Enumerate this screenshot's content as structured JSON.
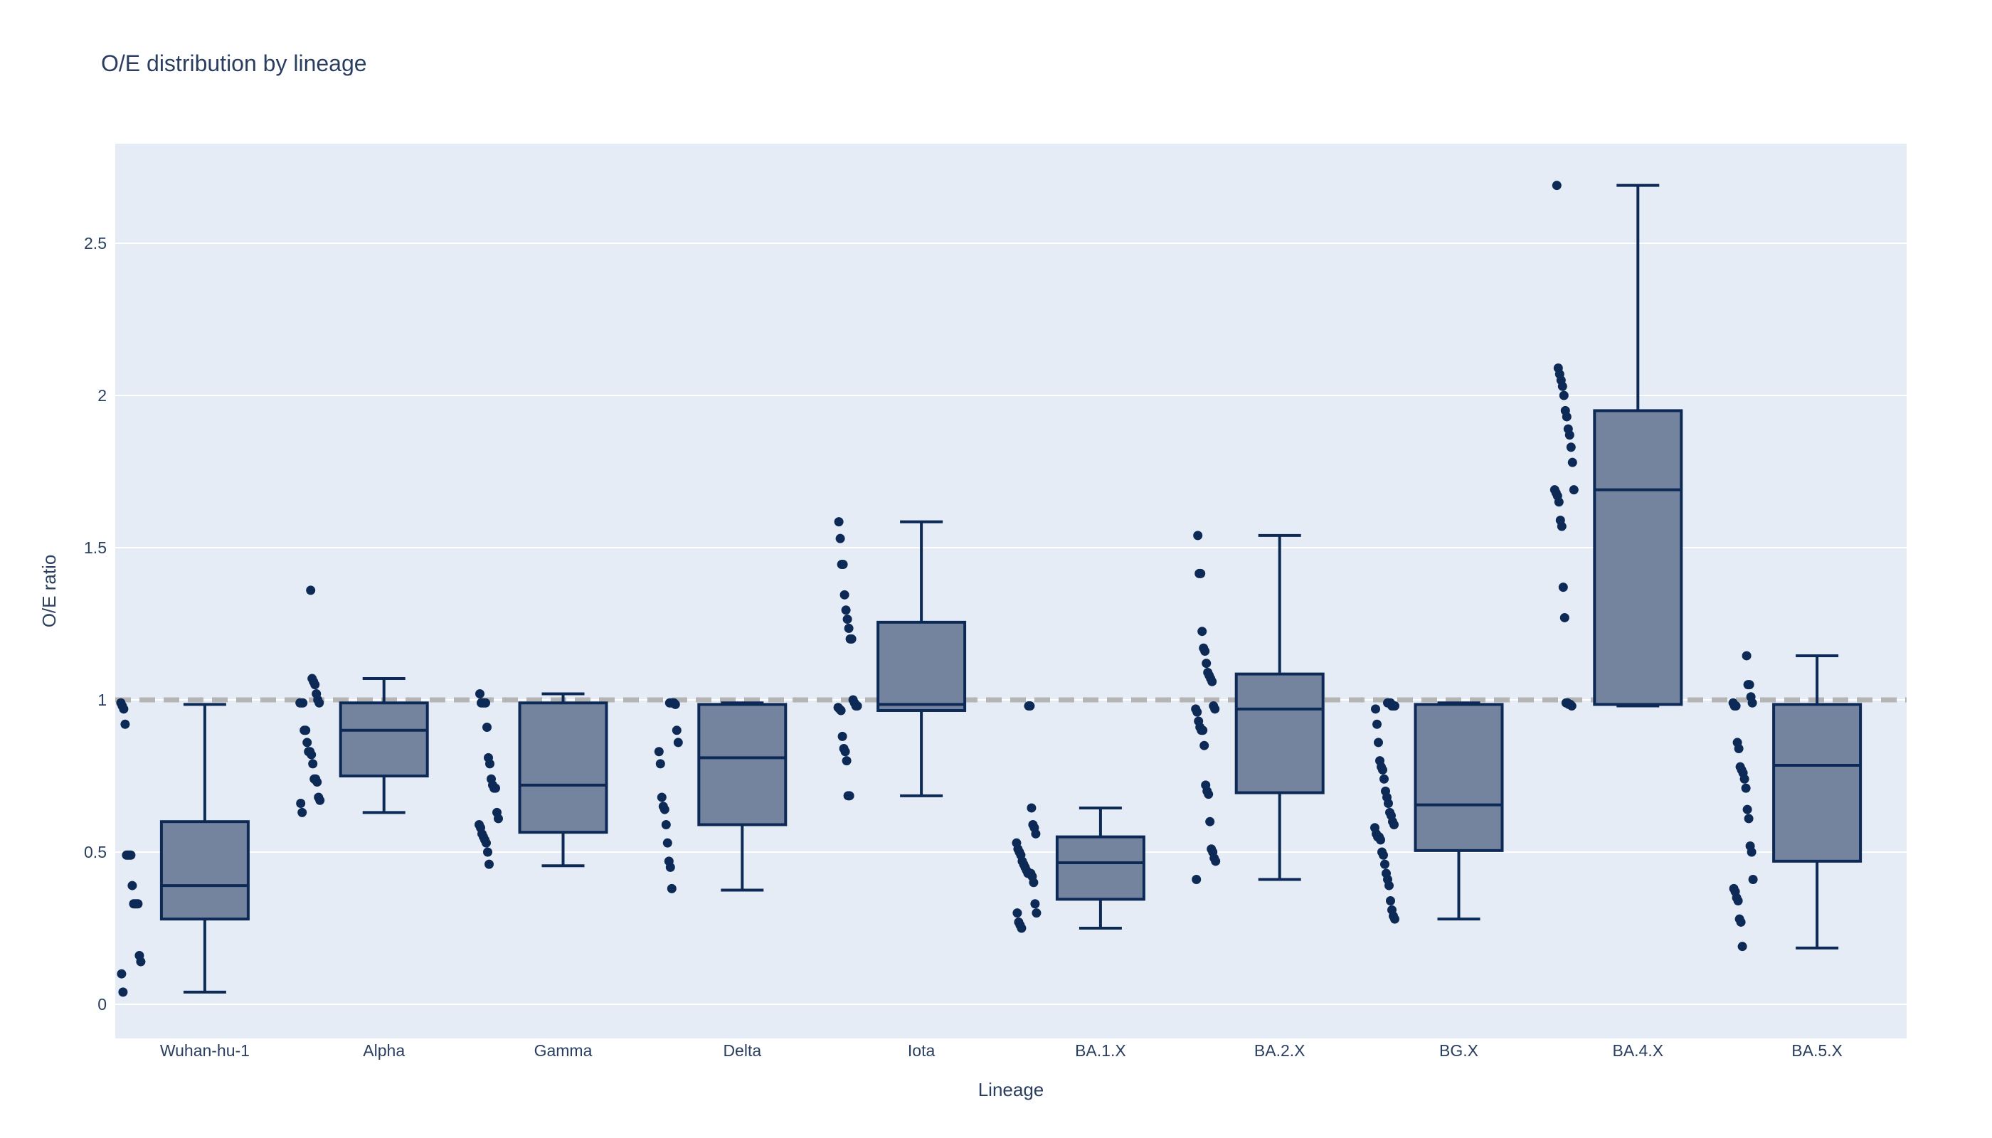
{
  "colors": {
    "plot_bg": "#e5ecf6",
    "grid": "#ffffff",
    "box_fill": "#74849f",
    "box_line": "#0d2a57",
    "point": "#0d2a57",
    "reference_line": "#b4b4b4",
    "text": "#2a3f5f"
  },
  "chart_data": {
    "type": "box",
    "title": "O/E distribution by lineage",
    "xlabel": "Lineage",
    "ylabel": "O/E ratio",
    "ylim": [
      -0.11,
      2.83
    ],
    "yticks": [
      0,
      0.5,
      1,
      1.5,
      2,
      2.5
    ],
    "ytick_labels": [
      "0",
      "0.5",
      "1",
      "1.5",
      "2",
      "2.5"
    ],
    "reference_line": {
      "y": 1.0,
      "style": "dashed"
    },
    "grid": true,
    "boxpoints": "all",
    "categories": [
      "Wuhan-hu-1",
      "Alpha",
      "Gamma",
      "Delta",
      "Iota",
      "BA.1.X",
      "BA.2.X",
      "BG.X",
      "BA.4.X",
      "BA.5.X"
    ],
    "boxes": [
      {
        "category": "Wuhan-hu-1",
        "min": 0.04,
        "q1": 0.28,
        "median": 0.39,
        "q3": 0.6,
        "max": 0.985,
        "points": [
          0.99,
          0.98,
          0.97,
          0.92,
          0.49,
          0.49,
          0.49,
          0.49,
          0.39,
          0.33,
          0.33,
          0.33,
          0.33,
          0.16,
          0.14,
          0.1,
          0.04
        ]
      },
      {
        "category": "Alpha",
        "min": 0.63,
        "q1": 0.75,
        "median": 0.9,
        "q3": 0.99,
        "max": 1.07,
        "points": [
          1.36,
          1.07,
          1.06,
          1.05,
          1.02,
          1.0,
          0.99,
          0.99,
          0.99,
          0.99,
          0.9,
          0.9,
          0.86,
          0.83,
          0.83,
          0.82,
          0.79,
          0.74,
          0.74,
          0.73,
          0.68,
          0.67,
          0.66,
          0.63
        ]
      },
      {
        "category": "Gamma",
        "min": 0.455,
        "q1": 0.565,
        "median": 0.72,
        "q3": 0.99,
        "max": 1.02,
        "points": [
          1.02,
          0.99,
          0.99,
          0.99,
          0.99,
          0.91,
          0.81,
          0.79,
          0.74,
          0.72,
          0.71,
          0.71,
          0.63,
          0.61,
          0.59,
          0.58,
          0.56,
          0.55,
          0.54,
          0.53,
          0.5,
          0.46
        ]
      },
      {
        "category": "Delta",
        "min": 0.375,
        "q1": 0.59,
        "median": 0.81,
        "q3": 0.985,
        "max": 0.99,
        "points": [
          0.99,
          0.99,
          0.99,
          0.99,
          0.985,
          0.9,
          0.86,
          0.83,
          0.79,
          0.68,
          0.65,
          0.64,
          0.59,
          0.53,
          0.47,
          0.45,
          0.38
        ]
      },
      {
        "category": "Iota",
        "min": 0.685,
        "q1": 0.965,
        "median": 0.985,
        "q3": 1.255,
        "max": 1.585,
        "points": [
          1.585,
          1.53,
          1.445,
          1.445,
          1.345,
          1.295,
          1.265,
          1.235,
          1.2,
          1.2,
          1.0,
          0.99,
          0.98,
          0.98,
          0.975,
          0.97,
          0.965,
          0.88,
          0.84,
          0.83,
          0.8,
          0.685,
          0.685
        ]
      },
      {
        "category": "BA.1.X",
        "min": 0.25,
        "q1": 0.345,
        "median": 0.465,
        "q3": 0.55,
        "max": 0.645,
        "points": [
          0.98,
          0.98,
          0.645,
          0.59,
          0.58,
          0.56,
          0.53,
          0.51,
          0.5,
          0.49,
          0.47,
          0.46,
          0.45,
          0.44,
          0.43,
          0.43,
          0.43,
          0.42,
          0.4,
          0.33,
          0.3,
          0.3,
          0.27,
          0.26,
          0.25
        ]
      },
      {
        "category": "BA.2.X",
        "min": 0.41,
        "q1": 0.695,
        "median": 0.97,
        "q3": 1.085,
        "max": 1.54,
        "points": [
          1.54,
          1.415,
          1.415,
          1.225,
          1.17,
          1.16,
          1.12,
          1.09,
          1.08,
          1.07,
          1.06,
          0.98,
          0.97,
          0.97,
          0.96,
          0.93,
          0.91,
          0.9,
          0.9,
          0.85,
          0.72,
          0.7,
          0.69,
          0.6,
          0.51,
          0.5,
          0.48,
          0.47,
          0.41
        ]
      },
      {
        "category": "BG.X",
        "min": 0.28,
        "q1": 0.505,
        "median": 0.655,
        "q3": 0.985,
        "max": 0.99,
        "points": [
          0.99,
          0.99,
          0.99,
          0.98,
          0.98,
          0.98,
          0.97,
          0.92,
          0.86,
          0.8,
          0.78,
          0.77,
          0.74,
          0.7,
          0.68,
          0.66,
          0.63,
          0.62,
          0.6,
          0.59,
          0.58,
          0.56,
          0.55,
          0.55,
          0.54,
          0.5,
          0.49,
          0.46,
          0.43,
          0.41,
          0.39,
          0.34,
          0.31,
          0.29,
          0.28
        ]
      },
      {
        "category": "BA.4.X",
        "min": 0.98,
        "q1": 0.985,
        "median": 1.69,
        "q3": 1.95,
        "max": 2.69,
        "points": [
          2.69,
          2.09,
          2.07,
          2.05,
          2.03,
          2.0,
          1.95,
          1.93,
          1.89,
          1.87,
          1.83,
          1.78,
          1.69,
          1.69,
          1.68,
          1.67,
          1.65,
          1.59,
          1.57,
          1.37,
          1.27,
          0.99,
          0.99,
          0.985,
          0.985,
          0.98
        ]
      },
      {
        "category": "BA.5.X",
        "min": 0.185,
        "q1": 0.47,
        "median": 0.785,
        "q3": 0.985,
        "max": 1.145,
        "points": [
          1.145,
          1.05,
          1.05,
          1.01,
          0.99,
          0.99,
          0.98,
          0.98,
          0.86,
          0.84,
          0.78,
          0.77,
          0.76,
          0.74,
          0.71,
          0.64,
          0.61,
          0.52,
          0.5,
          0.41,
          0.38,
          0.37,
          0.35,
          0.34,
          0.28,
          0.27,
          0.19
        ]
      }
    ]
  }
}
